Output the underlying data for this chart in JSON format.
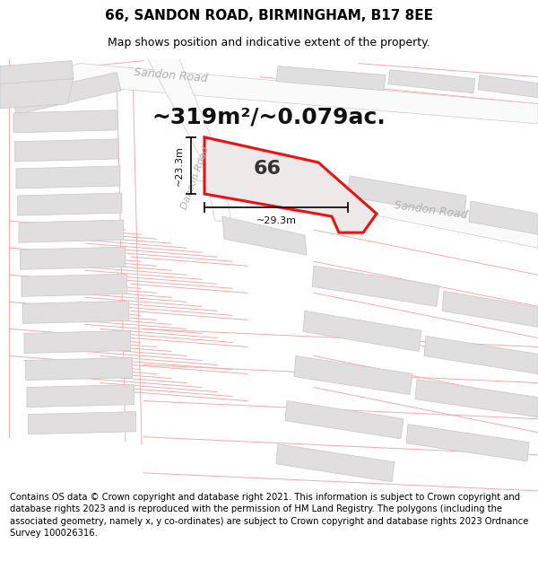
{
  "title": "66, SANDON ROAD, BIRMINGHAM, B17 8EE",
  "subtitle": "Map shows position and indicative extent of the property.",
  "area_text": "~319m²/~0.079ac.",
  "label_66": "66",
  "dim_height": "~23.3m",
  "dim_width": "~29.3m",
  "footer": "Contains OS data © Crown copyright and database right 2021. This information is subject to Crown copyright and database rights 2023 and is reproduced with the permission of HM Land Registry. The polygons (including the associated geometry, namely x, y co-ordinates) are subject to Crown copyright and database rights 2023 Ordnance Survey 100026316.",
  "map_bg": "#f0eeee",
  "road_color": "#f8f8f8",
  "building_color": "#e0dede",
  "building_edge": "#cccccc",
  "property_fill": "#e8e6e6",
  "red_color": "#ee1111",
  "pink_color": "#f5aaaa",
  "gray_road_label": "#b0b0b0",
  "title_fontsize": 11,
  "subtitle_fontsize": 9,
  "area_fontsize": 18,
  "label_fontsize": 16,
  "footer_fontsize": 7.2,
  "road_label_fontsize": 9
}
